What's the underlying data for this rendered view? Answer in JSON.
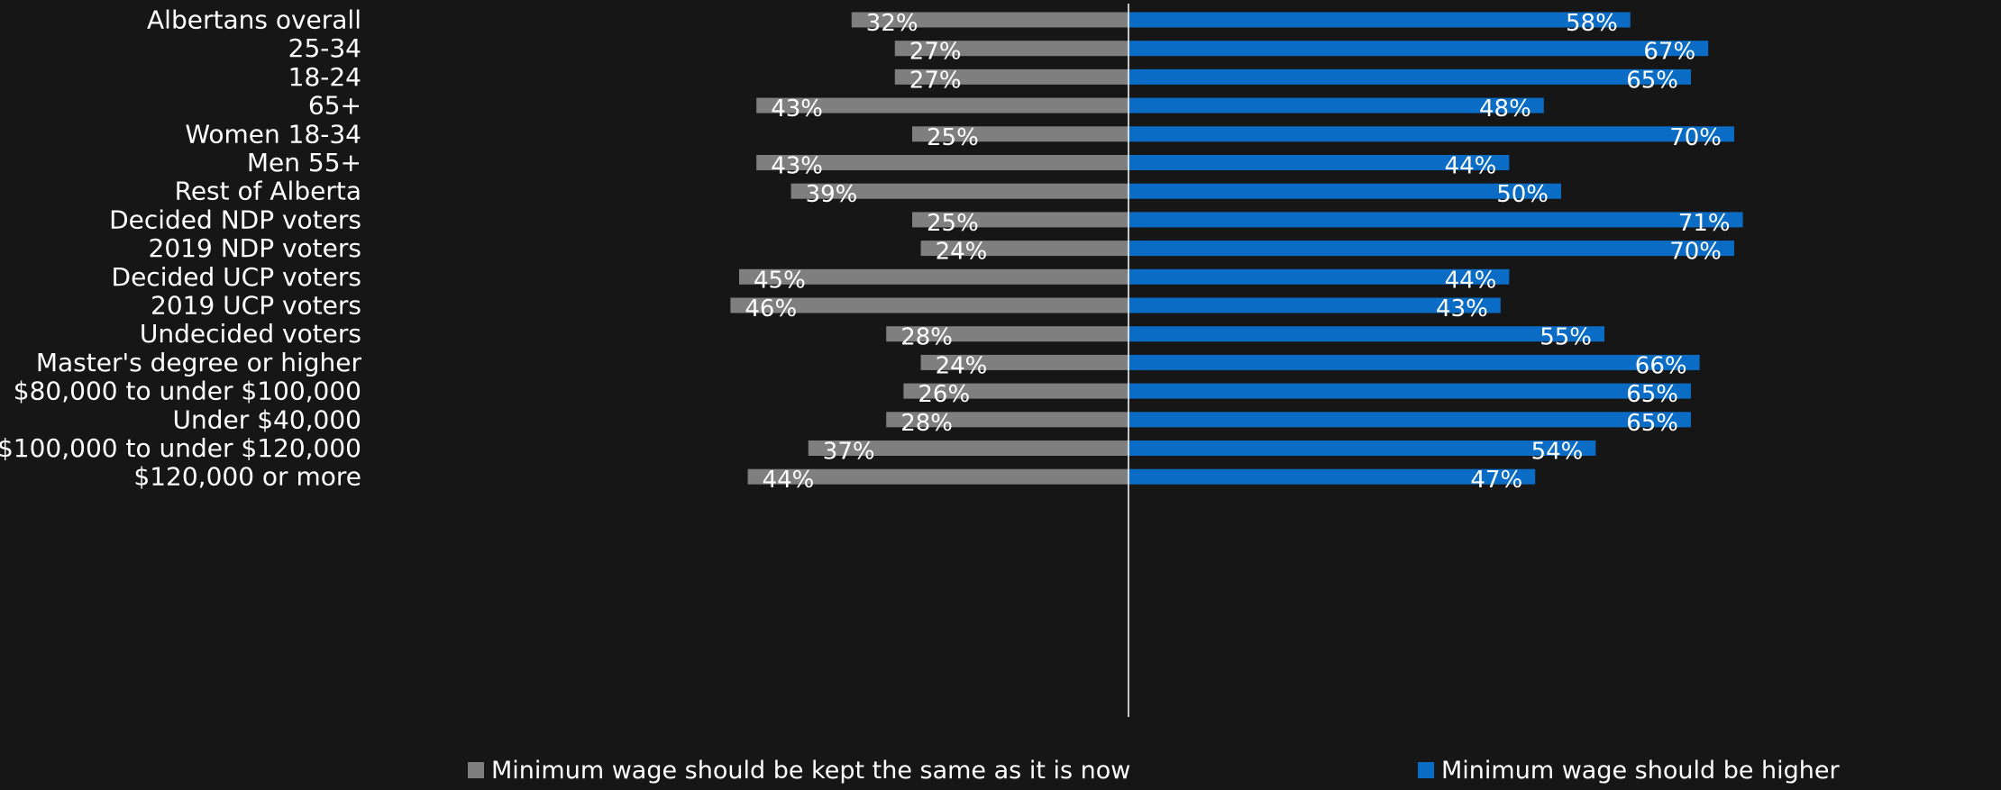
{
  "chart_data": {
    "type": "bar",
    "orientation": "diverging-horizontal",
    "categories": [
      "Albertans overall",
      "25-34",
      "18-24",
      "65+",
      "Women 18-34",
      "Men 55+",
      "Rest of Alberta",
      "Decided NDP voters",
      "2019 NDP voters",
      "Decided UCP voters",
      "2019 UCP voters",
      "Undecided voters",
      "Master's degree or higher",
      "$80,000 to under $100,000",
      "Under $40,000",
      "$100,000 to under $120,000",
      "$120,000 or more"
    ],
    "series": [
      {
        "name": "Minimum wage should be kept the same as it is now",
        "color": "#7f7f7f",
        "direction": "left",
        "values": [
          32,
          27,
          27,
          43,
          25,
          43,
          39,
          25,
          24,
          45,
          46,
          28,
          24,
          26,
          28,
          37,
          44
        ],
        "labels": [
          "32%",
          "27%",
          "27%",
          "43%",
          "25%",
          "43%",
          "39%",
          "25%",
          "24%",
          "45%",
          "46%",
          "28%",
          "24%",
          "26%",
          "28%",
          "37%",
          "44%"
        ]
      },
      {
        "name": "Minimum wage should be higher",
        "color": "#0a6cc4",
        "direction": "right",
        "values": [
          58,
          67,
          65,
          48,
          70,
          44,
          50,
          71,
          70,
          44,
          43,
          55,
          66,
          65,
          65,
          54,
          47
        ],
        "labels": [
          "58%",
          "67%",
          "65%",
          "48%",
          "70%",
          "44%",
          "50%",
          "71%",
          "70%",
          "44%",
          "43%",
          "55%",
          "66%",
          "65%",
          "65%",
          "54%",
          "47%"
        ]
      }
    ],
    "groups": [
      [
        0
      ],
      [
        1,
        2,
        3
      ],
      [
        4,
        5
      ],
      [
        6
      ],
      [
        7,
        8
      ],
      [
        9,
        10
      ],
      [
        11
      ],
      [
        12
      ],
      [
        13,
        14,
        15,
        16
      ]
    ],
    "legend_position": "bottom",
    "grid": false,
    "xlim": [
      -50,
      72
    ]
  }
}
